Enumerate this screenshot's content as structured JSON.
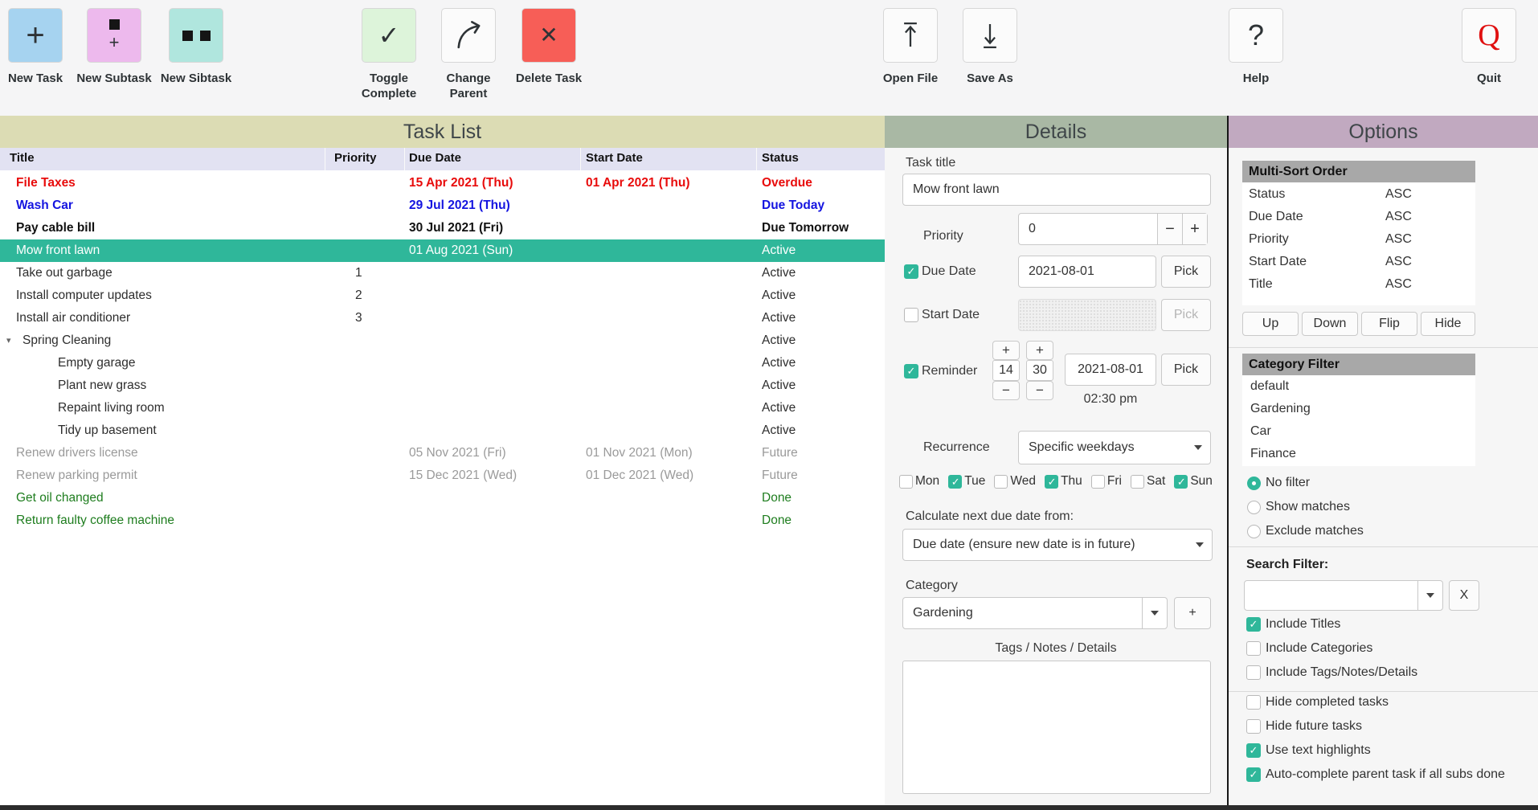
{
  "toolbar": {
    "buttons": [
      {
        "id": "new-task",
        "label": "New Task",
        "icon": "plus-icon",
        "bg": "#a6d3f0"
      },
      {
        "id": "new-subtask",
        "label": "New Subtask",
        "icon": "subtask-icon",
        "bg": "#edb9ed"
      },
      {
        "id": "new-sibtask",
        "label": "New Sibtask",
        "icon": "sibling-tasks-icon",
        "bg": "#b0e6de"
      },
      {
        "id": "toggle-complete",
        "label": "Toggle Complete",
        "icon": "checkmark-icon",
        "bg": "#ddf4da"
      },
      {
        "id": "change-parent",
        "label": "Change Parent",
        "icon": "curved-arrow-icon",
        "bg": "#fbfbfb"
      },
      {
        "id": "delete-task",
        "label": "Delete Task",
        "icon": "cross-icon",
        "bg": "#f75e57"
      },
      {
        "id": "open-file",
        "label": "Open File",
        "icon": "upload-arrow-icon",
        "bg": "#fbfbfb"
      },
      {
        "id": "save-as",
        "label": "Save As",
        "icon": "download-arrow-icon",
        "bg": "#fbfbfb"
      },
      {
        "id": "help",
        "label": "Help",
        "icon": "question-mark-icon",
        "bg": "#fbfbfb"
      },
      {
        "id": "quit",
        "label": "Quit",
        "icon": "quit-q-icon",
        "bg": "#fbfbfb"
      }
    ]
  },
  "tasklist": {
    "title": "Task List",
    "columns": [
      "Title",
      "Priority",
      "Due Date",
      "Start Date",
      "Status"
    ],
    "rows": [
      {
        "title": "File Taxes",
        "priority": "",
        "due": "15 Apr 2021 (Thu)",
        "start": "01 Apr 2021 (Thu)",
        "status": "Overdue",
        "style": "overdue",
        "indent": 0,
        "expander": false
      },
      {
        "title": "Wash Car",
        "priority": "",
        "due": "29 Jul 2021 (Thu)",
        "start": "",
        "status": "Due Today",
        "style": "due-today",
        "indent": 0,
        "expander": false
      },
      {
        "title": "Pay cable bill",
        "priority": "",
        "due": "30 Jul 2021 (Fri)",
        "start": "",
        "status": "Due Tomorrow",
        "style": "due-tomorrow",
        "indent": 0,
        "expander": false
      },
      {
        "title": "Mow front lawn",
        "priority": "",
        "due": "01 Aug 2021 (Sun)",
        "start": "",
        "status": "Active",
        "style": "selected",
        "indent": 0,
        "expander": false
      },
      {
        "title": "Take out garbage",
        "priority": "1",
        "due": "",
        "start": "",
        "status": "Active",
        "style": "active",
        "indent": 0,
        "expander": false
      },
      {
        "title": "Install computer updates",
        "priority": "2",
        "due": "",
        "start": "",
        "status": "Active",
        "style": "active",
        "indent": 0,
        "expander": false
      },
      {
        "title": "Install air conditioner",
        "priority": "3",
        "due": "",
        "start": "",
        "status": "Active",
        "style": "active",
        "indent": 0,
        "expander": false
      },
      {
        "title": "Spring Cleaning",
        "priority": "",
        "due": "",
        "start": "",
        "status": "Active",
        "style": "active",
        "indent": 0,
        "expander": true
      },
      {
        "title": "Empty garage",
        "priority": "",
        "due": "",
        "start": "",
        "status": "Active",
        "style": "active",
        "indent": 1,
        "expander": false
      },
      {
        "title": "Plant new grass",
        "priority": "",
        "due": "",
        "start": "",
        "status": "Active",
        "style": "active",
        "indent": 1,
        "expander": false
      },
      {
        "title": "Repaint living room",
        "priority": "",
        "due": "",
        "start": "",
        "status": "Active",
        "style": "active",
        "indent": 1,
        "expander": false
      },
      {
        "title": "Tidy up basement",
        "priority": "",
        "due": "",
        "start": "",
        "status": "Active",
        "style": "active",
        "indent": 1,
        "expander": false
      },
      {
        "title": "Renew drivers license",
        "priority": "",
        "due": "05 Nov 2021 (Fri)",
        "start": "01 Nov 2021 (Mon)",
        "status": "Future",
        "style": "future",
        "indent": 0,
        "expander": false
      },
      {
        "title": "Renew parking permit",
        "priority": "",
        "due": "15 Dec 2021 (Wed)",
        "start": "01 Dec 2021 (Wed)",
        "status": "Future",
        "style": "future",
        "indent": 0,
        "expander": false
      },
      {
        "title": "Get oil changed",
        "priority": "",
        "due": "",
        "start": "",
        "status": "Done",
        "style": "done",
        "indent": 0,
        "expander": false
      },
      {
        "title": "Return faulty coffee machine",
        "priority": "",
        "due": "",
        "start": "",
        "status": "Done",
        "style": "done",
        "indent": 0,
        "expander": false
      }
    ]
  },
  "details": {
    "title": "Details",
    "task_title_label": "Task title",
    "task_title_value": "Mow front lawn",
    "priority_label": "Priority",
    "priority_value": "0",
    "minus_label": "−",
    "plus_label": "+",
    "due_date": {
      "label": "Due Date",
      "checked": true,
      "value": "2021-08-01",
      "pick_label": "Pick"
    },
    "start_date": {
      "label": "Start Date",
      "checked": false,
      "value": "",
      "pick_label": "Pick"
    },
    "reminder": {
      "label": "Reminder",
      "checked": true,
      "hours": "14",
      "minutes": "30",
      "date": "2021-08-01",
      "pick_label": "Pick",
      "time": "02:30 pm"
    },
    "recurrence_label": "Recurrence",
    "recurrence_value": "Specific weekdays",
    "weekdays": [
      {
        "label": "Mon",
        "checked": false
      },
      {
        "label": "Tue",
        "checked": true
      },
      {
        "label": "Wed",
        "checked": false
      },
      {
        "label": "Thu",
        "checked": true
      },
      {
        "label": "Fri",
        "checked": false
      },
      {
        "label": "Sat",
        "checked": false
      },
      {
        "label": "Sun",
        "checked": true
      }
    ],
    "calc_label": "Calculate next due date from:",
    "calc_value": "Due date (ensure new date is in future)",
    "category_label": "Category",
    "category_value": "Gardening",
    "add_category_label": "+",
    "notes_label": "Tags / Notes / Details",
    "notes_value": ""
  },
  "options": {
    "title": "Options",
    "sort": {
      "header": "Multi-Sort Order",
      "rows": [
        {
          "field": "Status",
          "dir": "ASC"
        },
        {
          "field": "Due Date",
          "dir": "ASC"
        },
        {
          "field": "Priority",
          "dir": "ASC"
        },
        {
          "field": "Start Date",
          "dir": "ASC"
        },
        {
          "field": "Title",
          "dir": "ASC"
        }
      ],
      "buttons": [
        "Up",
        "Down",
        "Flip",
        "Hide"
      ]
    },
    "category_filter": {
      "header": "Category Filter",
      "items": [
        "default",
        "Gardening",
        "Car",
        "Finance"
      ],
      "radios": [
        {
          "label": "No filter",
          "selected": true
        },
        {
          "label": "Show matches",
          "selected": false
        },
        {
          "label": "Exclude matches",
          "selected": false
        }
      ]
    },
    "search": {
      "label": "Search Filter:",
      "value": "",
      "clear_label": "X",
      "checks": [
        {
          "label": "Include Titles",
          "checked": true
        },
        {
          "label": "Include Categories",
          "checked": false
        },
        {
          "label": "Include Tags/Notes/Details",
          "checked": false
        }
      ]
    },
    "misc_checks": [
      {
        "label": "Hide completed tasks",
        "checked": false
      },
      {
        "label": "Hide future tasks",
        "checked": false
      },
      {
        "label": "Use text highlights",
        "checked": true
      },
      {
        "label": "Auto-complete parent task if all subs done",
        "checked": true
      }
    ]
  },
  "colors": {
    "selected_row_bg": "#2fb79a",
    "overdue_red": "#e80b0b",
    "due_today_blue": "#1414e0",
    "done_green": "#1e7d1e",
    "future_gray": "#9a9a9a",
    "tasklist_header_bg": "#dcdcb4",
    "details_header_bg": "#a9b8a4",
    "options_header_bg": "#c1a9c0",
    "quit_red": "#e01010",
    "accent_teal": "#2fb79a"
  }
}
